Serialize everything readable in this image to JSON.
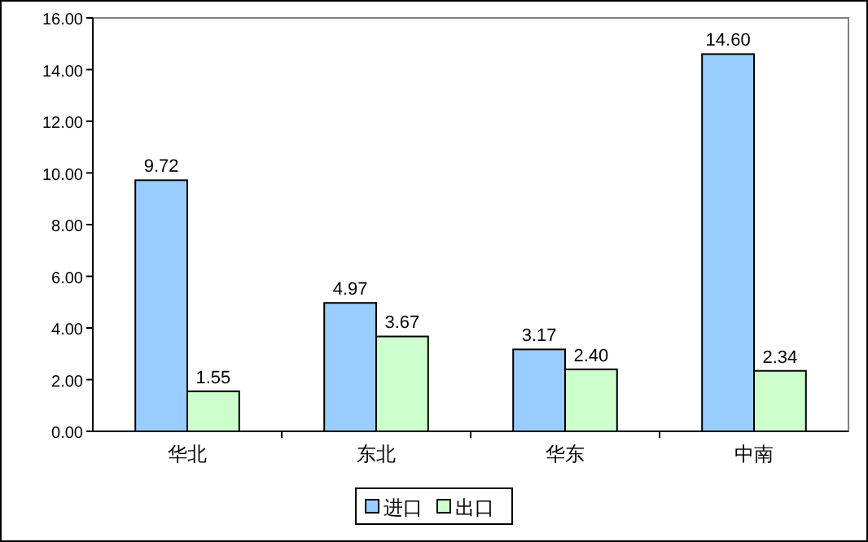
{
  "chart_data": {
    "type": "bar",
    "categories": [
      "华北",
      "东北",
      "华东",
      "中南"
    ],
    "series": [
      {
        "name": "进口",
        "color": "#99ccff",
        "values": [
          9.72,
          4.97,
          3.17,
          14.6
        ],
        "value_labels": [
          "9.72",
          "4.97",
          "3.17",
          "14.60"
        ]
      },
      {
        "name": "出口",
        "color": "#ccffcc",
        "values": [
          1.55,
          3.67,
          2.4,
          2.34
        ],
        "value_labels": [
          "1.55",
          "3.67",
          "2.40",
          "2.34"
        ]
      }
    ],
    "ylim": [
      0,
      16
    ],
    "yticks": [
      {
        "value": 0,
        "label": "0.00"
      },
      {
        "value": 2,
        "label": "2.00"
      },
      {
        "value": 4,
        "label": "4.00"
      },
      {
        "value": 6,
        "label": "6.00"
      },
      {
        "value": 8,
        "label": "8.00"
      },
      {
        "value": 10,
        "label": "10.00"
      },
      {
        "value": 12,
        "label": "12.00"
      },
      {
        "value": 14,
        "label": "14.00"
      },
      {
        "value": 16,
        "label": "16.00"
      }
    ],
    "legend": "bottom",
    "grid": false
  }
}
